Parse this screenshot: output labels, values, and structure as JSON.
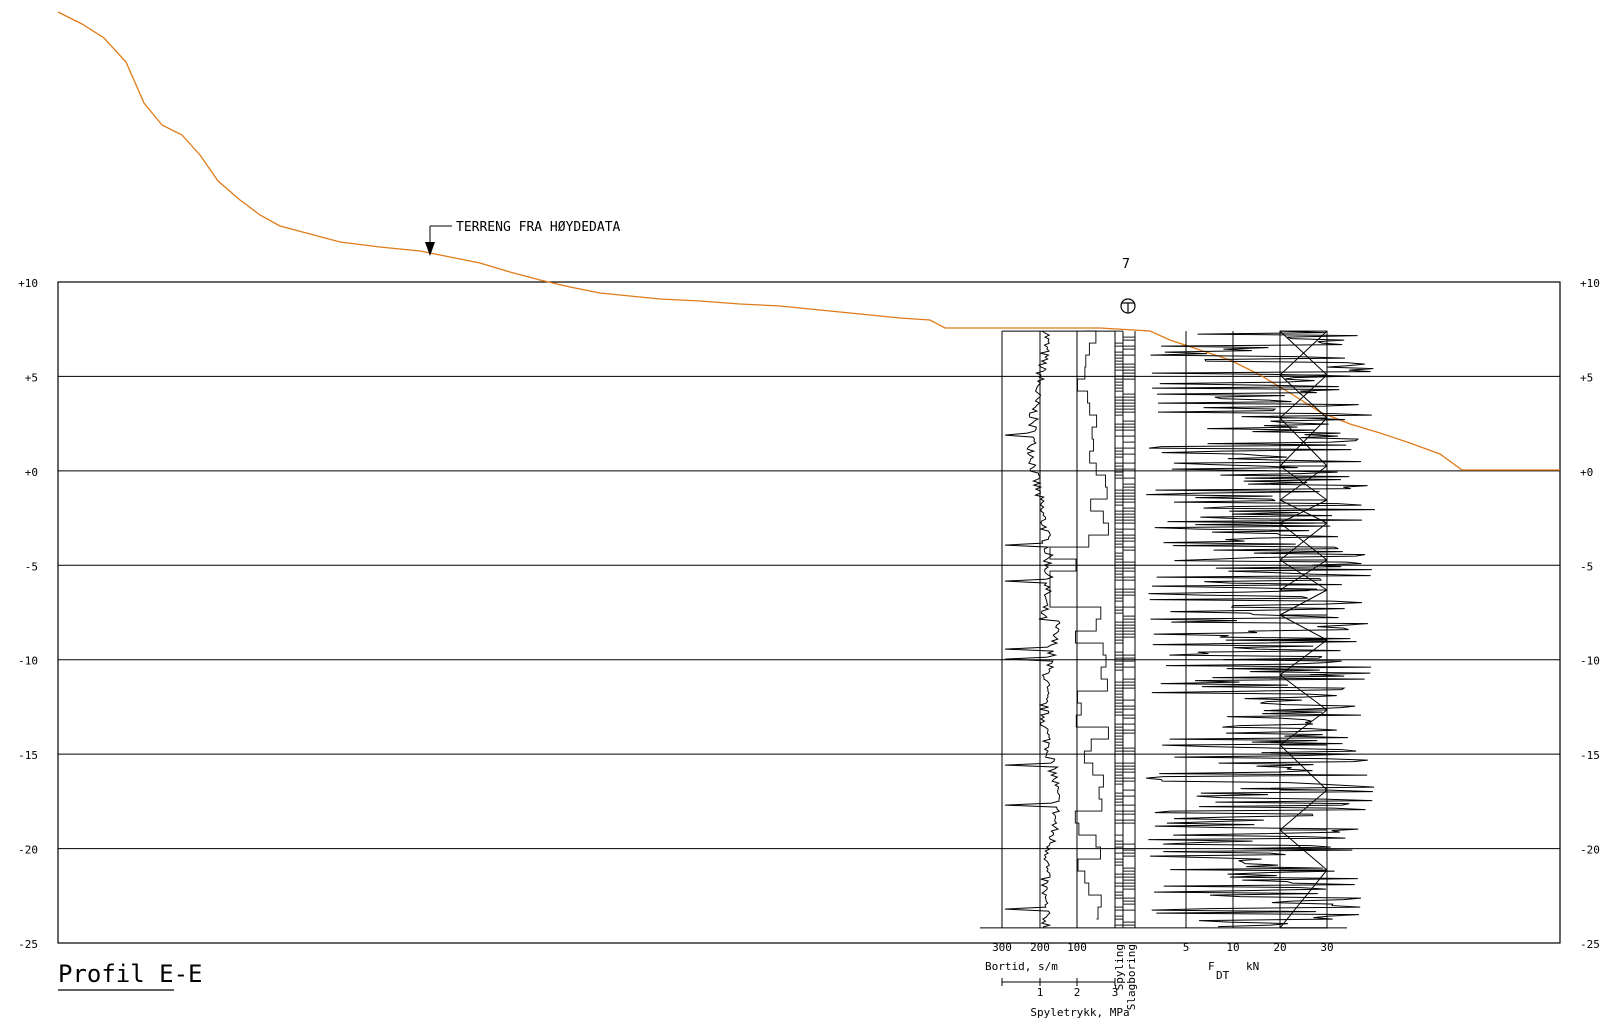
{
  "profile": {
    "title": "Profil E-E",
    "terrain_label": "TERRENG FRA HØYDEDATA",
    "terrain_color": "#e07b1a",
    "elevation_range": [
      -25,
      10
    ],
    "elevation_ticks": [
      {
        "value": 10,
        "label": "+10"
      },
      {
        "value": 5,
        "label": "+5"
      },
      {
        "value": 0,
        "label": "+0"
      },
      {
        "value": -5,
        "label": "-5"
      },
      {
        "value": -10,
        "label": "-10"
      },
      {
        "value": -15,
        "label": "-15"
      },
      {
        "value": -20,
        "label": "-20"
      },
      {
        "value": -25,
        "label": "-25"
      }
    ]
  },
  "borehole": {
    "number": "7",
    "top_elevation": 7.4,
    "bottom_elevation": -24.2,
    "bortid_ticks": [
      "300",
      "200",
      "100"
    ],
    "bortid_label": "Bortid, s/m",
    "spyletrykk_ticks": [
      "1",
      "2",
      "3"
    ],
    "spyletrykk_label": "Spyletrykk, MPa",
    "spyling_label": "Spyling",
    "slagboring_label": "Slagboring",
    "fdt_ticks": [
      "5",
      "10",
      "20",
      "30"
    ],
    "fdt_label_main": "F",
    "fdt_label_sub": "DT",
    "fdt_unit": "kN"
  }
}
